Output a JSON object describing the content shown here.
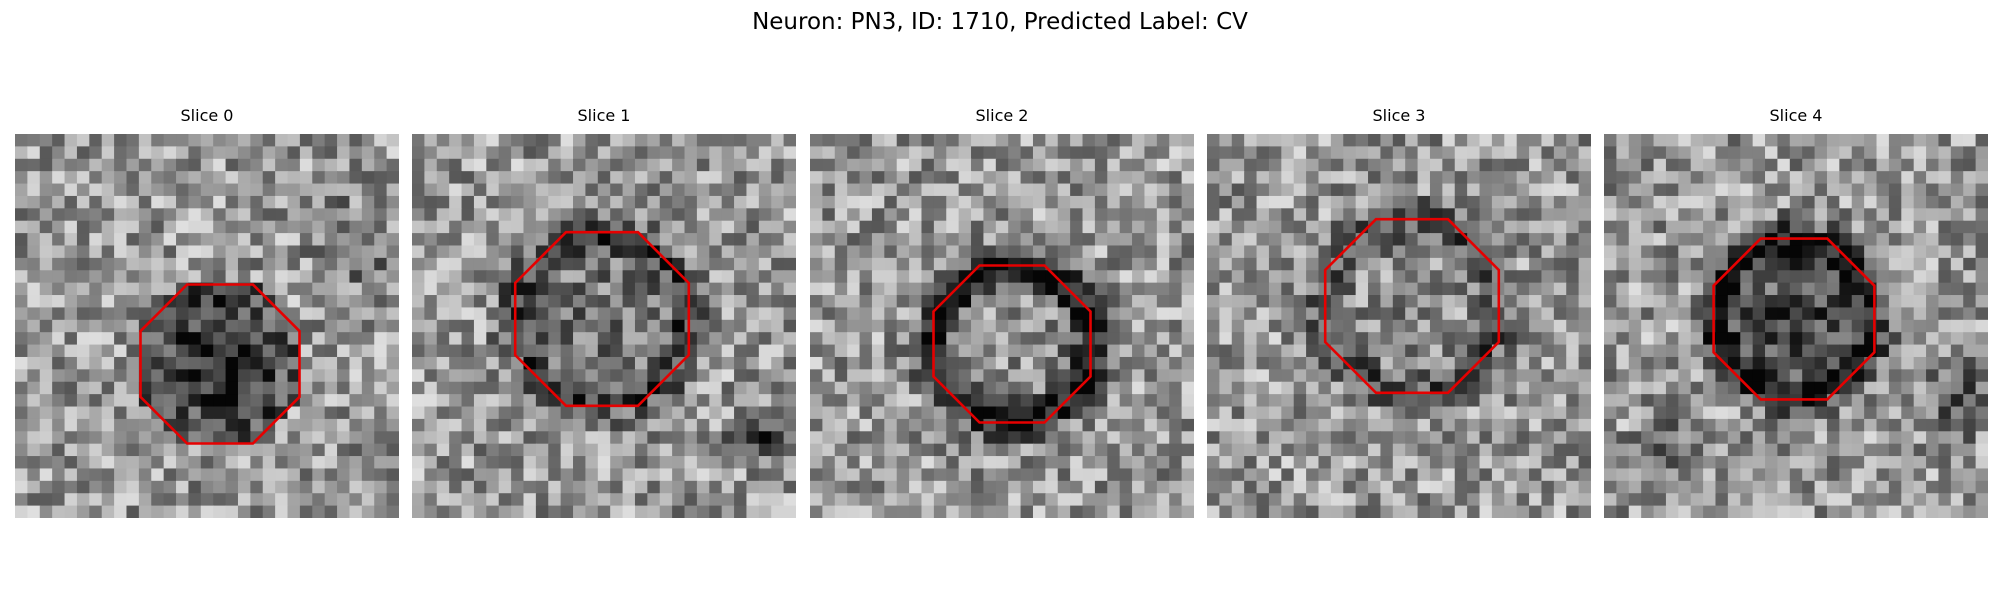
{
  "figure": {
    "title": "Neuron: PN3, ID: 1710, Predicted Label: CV"
  },
  "slices": [
    {
      "title": "Slice 0"
    },
    {
      "title": "Slice 1"
    },
    {
      "title": "Slice 2"
    },
    {
      "title": "Slice 3"
    },
    {
      "title": "Slice 4"
    }
  ],
  "colors": {
    "contour": "#e60000",
    "colormap": "grayscale"
  },
  "image_content": "grayscale electron micrograph patches with octagonal red contour outlines"
}
